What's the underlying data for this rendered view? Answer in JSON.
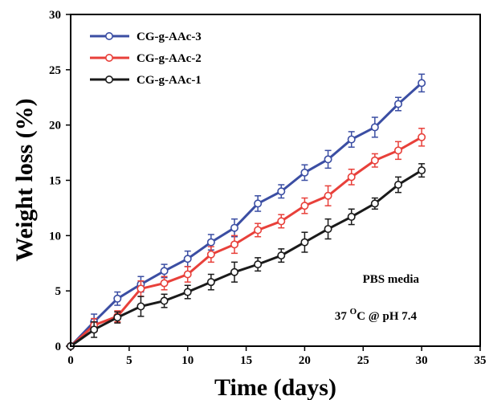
{
  "chart_data": {
    "type": "line",
    "title": "",
    "xlabel": "Time (days)",
    "ylabel": "Weight loss (%)",
    "xlim": [
      0,
      35
    ],
    "ylim": [
      0,
      30
    ],
    "xticks": [
      0,
      5,
      10,
      15,
      20,
      25,
      30,
      35
    ],
    "yticks": [
      0,
      5,
      10,
      15,
      20,
      25,
      30
    ],
    "grid": false,
    "legend_position": "top-left",
    "annotations": [
      "PBS media",
      "37 °C @ pH 7.4"
    ],
    "annotation_parts": {
      "line1": "PBS media",
      "line2_prefix": "37 ",
      "line2_sup": "O",
      "line2_suffix": "C @ pH 7.4"
    },
    "series": [
      {
        "name": "CG-g-AAc-3",
        "color": "#3b4ea3",
        "x": [
          0,
          2,
          4,
          6,
          8,
          10,
          12,
          14,
          16,
          18,
          20,
          22,
          24,
          26,
          28,
          30
        ],
        "y": [
          0,
          2.2,
          4.3,
          5.6,
          6.8,
          7.9,
          9.4,
          10.7,
          12.9,
          14.0,
          15.7,
          16.9,
          18.7,
          19.8,
          21.9,
          23.8
        ],
        "err": [
          0,
          0.7,
          0.6,
          0.7,
          0.6,
          0.7,
          0.7,
          0.8,
          0.7,
          0.6,
          0.7,
          0.8,
          0.7,
          0.9,
          0.6,
          0.8
        ]
      },
      {
        "name": "CG-g-AAc-2",
        "color": "#e8403a",
        "x": [
          0,
          2,
          4,
          6,
          8,
          10,
          12,
          14,
          16,
          18,
          20,
          22,
          24,
          26,
          28,
          30
        ],
        "y": [
          0,
          1.9,
          2.7,
          5.2,
          5.7,
          6.5,
          8.3,
          9.2,
          10.5,
          11.3,
          12.7,
          13.6,
          15.3,
          16.8,
          17.7,
          18.9
        ],
        "err": [
          0,
          0.6,
          0.5,
          0.7,
          0.6,
          0.7,
          0.7,
          0.8,
          0.6,
          0.6,
          0.7,
          0.9,
          0.7,
          0.6,
          0.8,
          0.8
        ]
      },
      {
        "name": "CG-g-AAc-1",
        "color": "#1a1a1a",
        "x": [
          0,
          2,
          4,
          6,
          8,
          10,
          12,
          14,
          16,
          18,
          20,
          22,
          24,
          26,
          28,
          30
        ],
        "y": [
          0,
          1.5,
          2.6,
          3.6,
          4.1,
          4.9,
          5.8,
          6.7,
          7.4,
          8.2,
          9.4,
          10.6,
          11.7,
          12.9,
          14.6,
          15.9
        ],
        "err": [
          0,
          0.7,
          0.5,
          0.9,
          0.6,
          0.6,
          0.7,
          0.9,
          0.6,
          0.6,
          0.9,
          0.9,
          0.7,
          0.5,
          0.7,
          0.6
        ]
      }
    ]
  }
}
